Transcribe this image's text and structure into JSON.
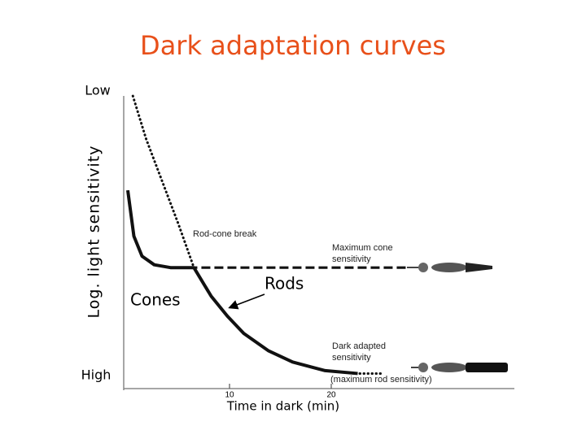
{
  "chart_data": {
    "type": "line",
    "title": "Dark adaptation curves",
    "x_label": "Time in dark (min)",
    "y_label": "Log. light sensitivity",
    "y_top_label": "Low",
    "y_bottom_label": "High",
    "xlim": [
      0,
      38
    ],
    "xticks": [
      10,
      20
    ],
    "ylim": [
      0,
      10
    ],
    "series": [
      {
        "style": "dotted",
        "color": "#111111",
        "x": [
          0.5,
          1.8,
          3.4,
          5.0,
          6.5,
          8.2,
          9.8,
          11.4,
          13.8,
          16.2,
          19.4,
          22.6,
          25.0
        ],
        "values": [
          10.0,
          8.5,
          7.0,
          5.5,
          4.0,
          3.0,
          2.3,
          1.7,
          1.1,
          0.7,
          0.4,
          0.3,
          0.3
        ]
      },
      {
        "style": "solid",
        "color": "#111111",
        "x": [
          0,
          0.6,
          1.4,
          2.6,
          4.2,
          6.5,
          8.2,
          9.8,
          11.4,
          13.8,
          16.2,
          19.4,
          22.6
        ],
        "values": [
          6.7,
          5.1,
          4.4,
          4.1,
          4.0,
          4.0,
          3.0,
          2.3,
          1.7,
          1.1,
          0.7,
          0.4,
          0.3
        ]
      },
      {
        "style": "dashed",
        "color": "#111111",
        "x": [
          0,
          0.6,
          1.4,
          2.6,
          4.2,
          6.5,
          27.4
        ],
        "values": [
          6.7,
          5.1,
          4.4,
          4.1,
          4.0,
          4.0,
          4.0
        ]
      }
    ],
    "annotations": [
      "Rod-cone break",
      "Maximum cone",
      "sensitivity",
      "Dark adapted",
      "sensitivity",
      "(maximum rod sensitivity)",
      "Cones",
      "Rods"
    ]
  }
}
